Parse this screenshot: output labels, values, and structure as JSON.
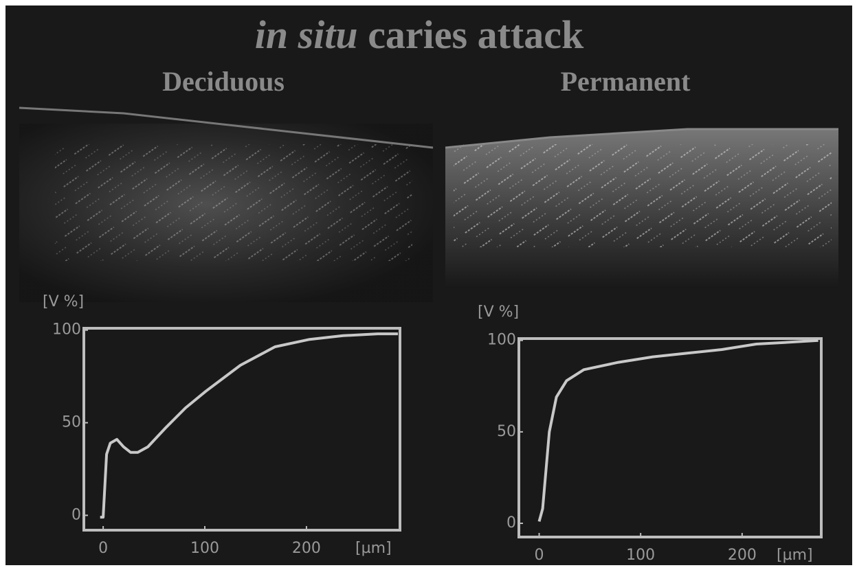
{
  "header": {
    "emphasis": "in situ",
    "text": "caries attack"
  },
  "chart_data": [
    {
      "type": "line",
      "title": "Deciduous",
      "ylabel": "[V %]",
      "xlabel": "[µm]",
      "color": "#c8c8c8",
      "x": [
        -3,
        0,
        3.4,
        7,
        13.5,
        20,
        27,
        34,
        44,
        61,
        81,
        101,
        135,
        169,
        203,
        236,
        270,
        290
      ],
      "values": [
        -1,
        -1,
        33,
        39,
        41,
        37,
        34,
        34,
        37,
        47,
        58,
        67,
        81,
        91,
        95,
        97,
        98,
        98
      ],
      "xlim": [
        -19,
        292
      ],
      "ylim": [
        -8,
        101
      ],
      "xticks": [
        0,
        100,
        200
      ],
      "yticks": [
        0,
        50,
        100
      ]
    },
    {
      "type": "line",
      "title": "Permanent",
      "ylabel": "[V %]",
      "xlabel": "[µm]",
      "color": "#c8c8c8",
      "x": [
        0,
        3.4,
        7,
        10,
        17,
        27,
        44,
        78,
        112,
        146,
        180,
        214,
        247,
        275
      ],
      "values": [
        1,
        8,
        31,
        50,
        69,
        78,
        84,
        88,
        91,
        93,
        95,
        98,
        99,
        100
      ],
      "xlim": [
        -20,
        278
      ],
      "ylim": [
        -7.5,
        101
      ],
      "xticks": [
        0,
        100,
        200
      ],
      "yticks": [
        0,
        50,
        100
      ]
    }
  ]
}
